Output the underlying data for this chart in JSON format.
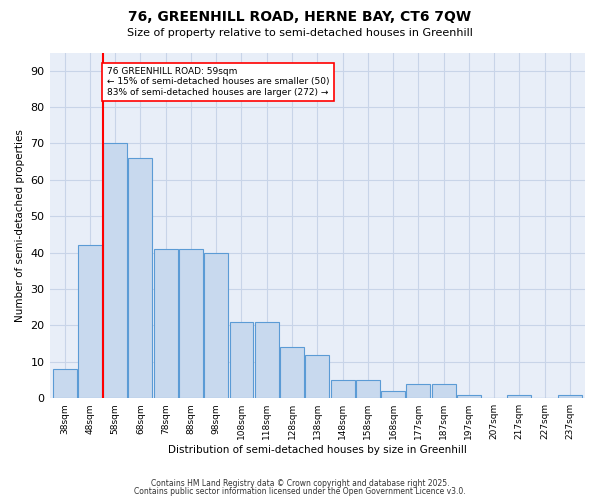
{
  "title1": "76, GREENHILL ROAD, HERNE BAY, CT6 7QW",
  "title2": "Size of property relative to semi-detached houses in Greenhill",
  "xlabel": "Distribution of semi-detached houses by size in Greenhill",
  "ylabel": "Number of semi-detached properties",
  "categories": [
    "38sqm",
    "48sqm",
    "58sqm",
    "68sqm",
    "78sqm",
    "88sqm",
    "98sqm",
    "108sqm",
    "118sqm",
    "128sqm",
    "138sqm",
    "148sqm",
    "158sqm",
    "168sqm",
    "177sqm",
    "187sqm",
    "197sqm",
    "207sqm",
    "217sqm",
    "227sqm",
    "237sqm"
  ],
  "values": [
    8,
    42,
    70,
    66,
    41,
    41,
    40,
    21,
    21,
    14,
    12,
    5,
    5,
    2,
    4,
    4,
    1,
    0,
    1,
    0,
    1
  ],
  "bar_color": "#c8d9ee",
  "bar_edge_color": "#5b9bd5",
  "annotation_text": "76 GREENHILL ROAD: 59sqm\n← 15% of semi-detached houses are smaller (50)\n83% of semi-detached houses are larger (272) →",
  "ylim": [
    0,
    95
  ],
  "yticks": [
    0,
    10,
    20,
    30,
    40,
    50,
    60,
    70,
    80,
    90
  ],
  "ax_facecolor": "#e8eef8",
  "fig_facecolor": "#ffffff",
  "grid_color": "#c8d4e8",
  "footer1": "Contains HM Land Registry data © Crown copyright and database right 2025.",
  "footer2": "Contains public sector information licensed under the Open Government Licence v3.0."
}
